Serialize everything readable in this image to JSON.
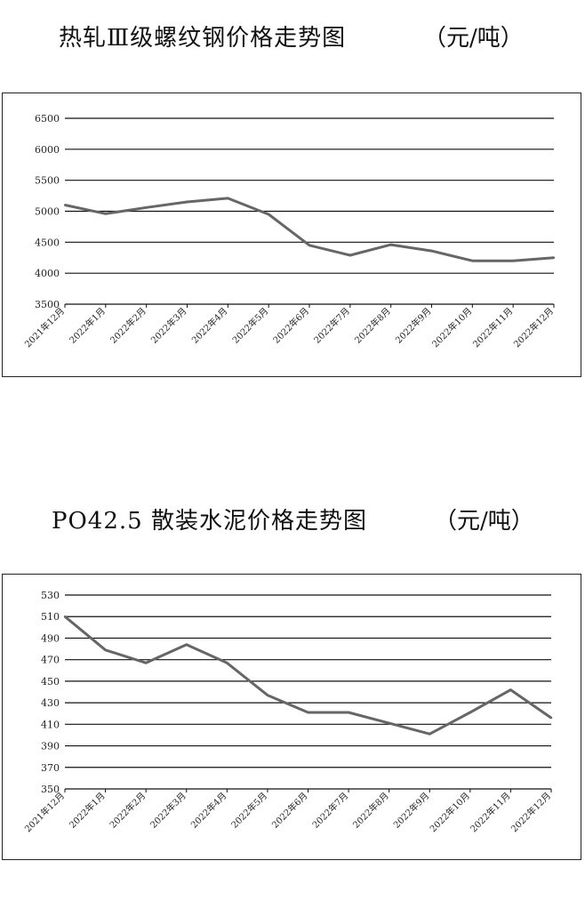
{
  "chart_data": [
    {
      "type": "line",
      "title": "热轧Ⅲ级螺纹钢价格走势图",
      "unit": "（元/吨）",
      "xlabel": "",
      "ylabel": "",
      "categories": [
        "2021年12月",
        "2022年1月",
        "2022年2月",
        "2022年3月",
        "2022年4月",
        "2022年5月",
        "2022年6月",
        "2022年7月",
        "2022年8月",
        "2022年9月",
        "2022年10月",
        "2022年11月",
        "2022年12月"
      ],
      "series": [
        {
          "values": [
            5100,
            4960,
            5060,
            5150,
            5210,
            4950,
            4450,
            4290,
            4460,
            4360,
            4200,
            4200,
            4250
          ]
        }
      ],
      "yticks": [
        3500,
        4000,
        4500,
        5000,
        5500,
        6000,
        6500
      ],
      "ylim": [
        3500,
        6500
      ],
      "grid": true,
      "line_color": "#666666"
    },
    {
      "type": "line",
      "title": "PO42.5 散装水泥价格走势图",
      "unit": "（元/吨）",
      "xlabel": "",
      "ylabel": "",
      "categories": [
        "2021年12月",
        "2022年1月",
        "2022年2月",
        "2022年3月",
        "2022年4月",
        "2022年5月",
        "2022年6月",
        "2022年7月",
        "2022年8月",
        "2022年9月",
        "2022年10月",
        "2022年11月",
        "2022年12月"
      ],
      "series": [
        {
          "values": [
            510,
            479,
            467,
            484,
            467,
            437,
            421,
            421,
            411,
            401,
            421,
            442,
            416
          ]
        }
      ],
      "yticks": [
        350,
        370,
        390,
        410,
        430,
        450,
        470,
        490,
        510,
        530
      ],
      "ylim": [
        350,
        530
      ],
      "grid": true,
      "line_color": "#666666"
    }
  ]
}
